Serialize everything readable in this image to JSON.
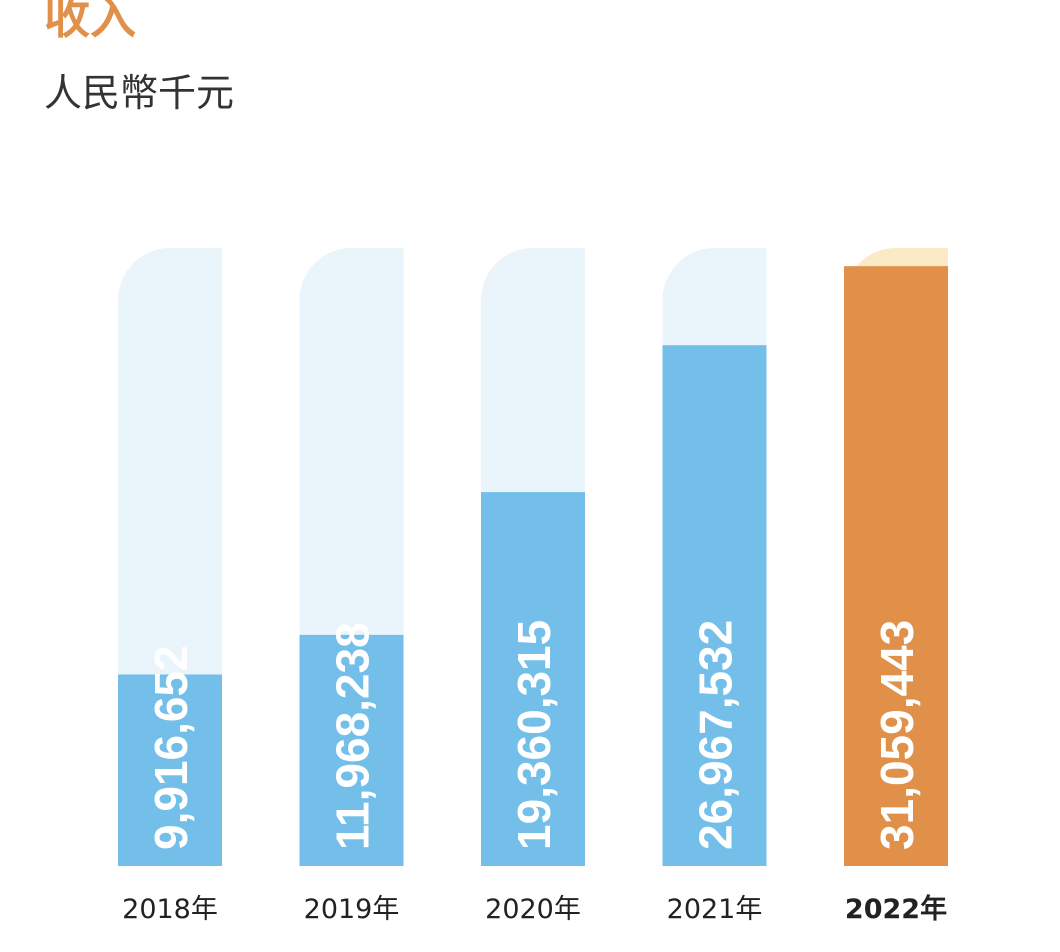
{
  "colors": {
    "title": "#e1904a",
    "subtitle": "#333333",
    "bar_track": "#eaf4fb",
    "bar_fill": "#74bfea",
    "highlight_track": "#faeac6",
    "highlight_fill": "#e1904a",
    "value_label": "#ffffff",
    "category_label": "#222222"
  },
  "chart_data": {
    "type": "bar",
    "title": "收入",
    "subtitle": "人民幣千元",
    "categories": [
      "2018年",
      "2019年",
      "2020年",
      "2021年",
      "2022年"
    ],
    "series": [
      {
        "values": [
          9916652,
          11968238,
          19360315,
          26967532,
          31059443
        ],
        "value_labels": [
          "9,916,652",
          "11,968,238",
          "19,360,315",
          "26,967,532",
          "31,059,443"
        ]
      }
    ],
    "highlight_category": "2022年",
    "ylim": [
      0,
      32000000
    ],
    "grid": false,
    "legend": "none"
  }
}
